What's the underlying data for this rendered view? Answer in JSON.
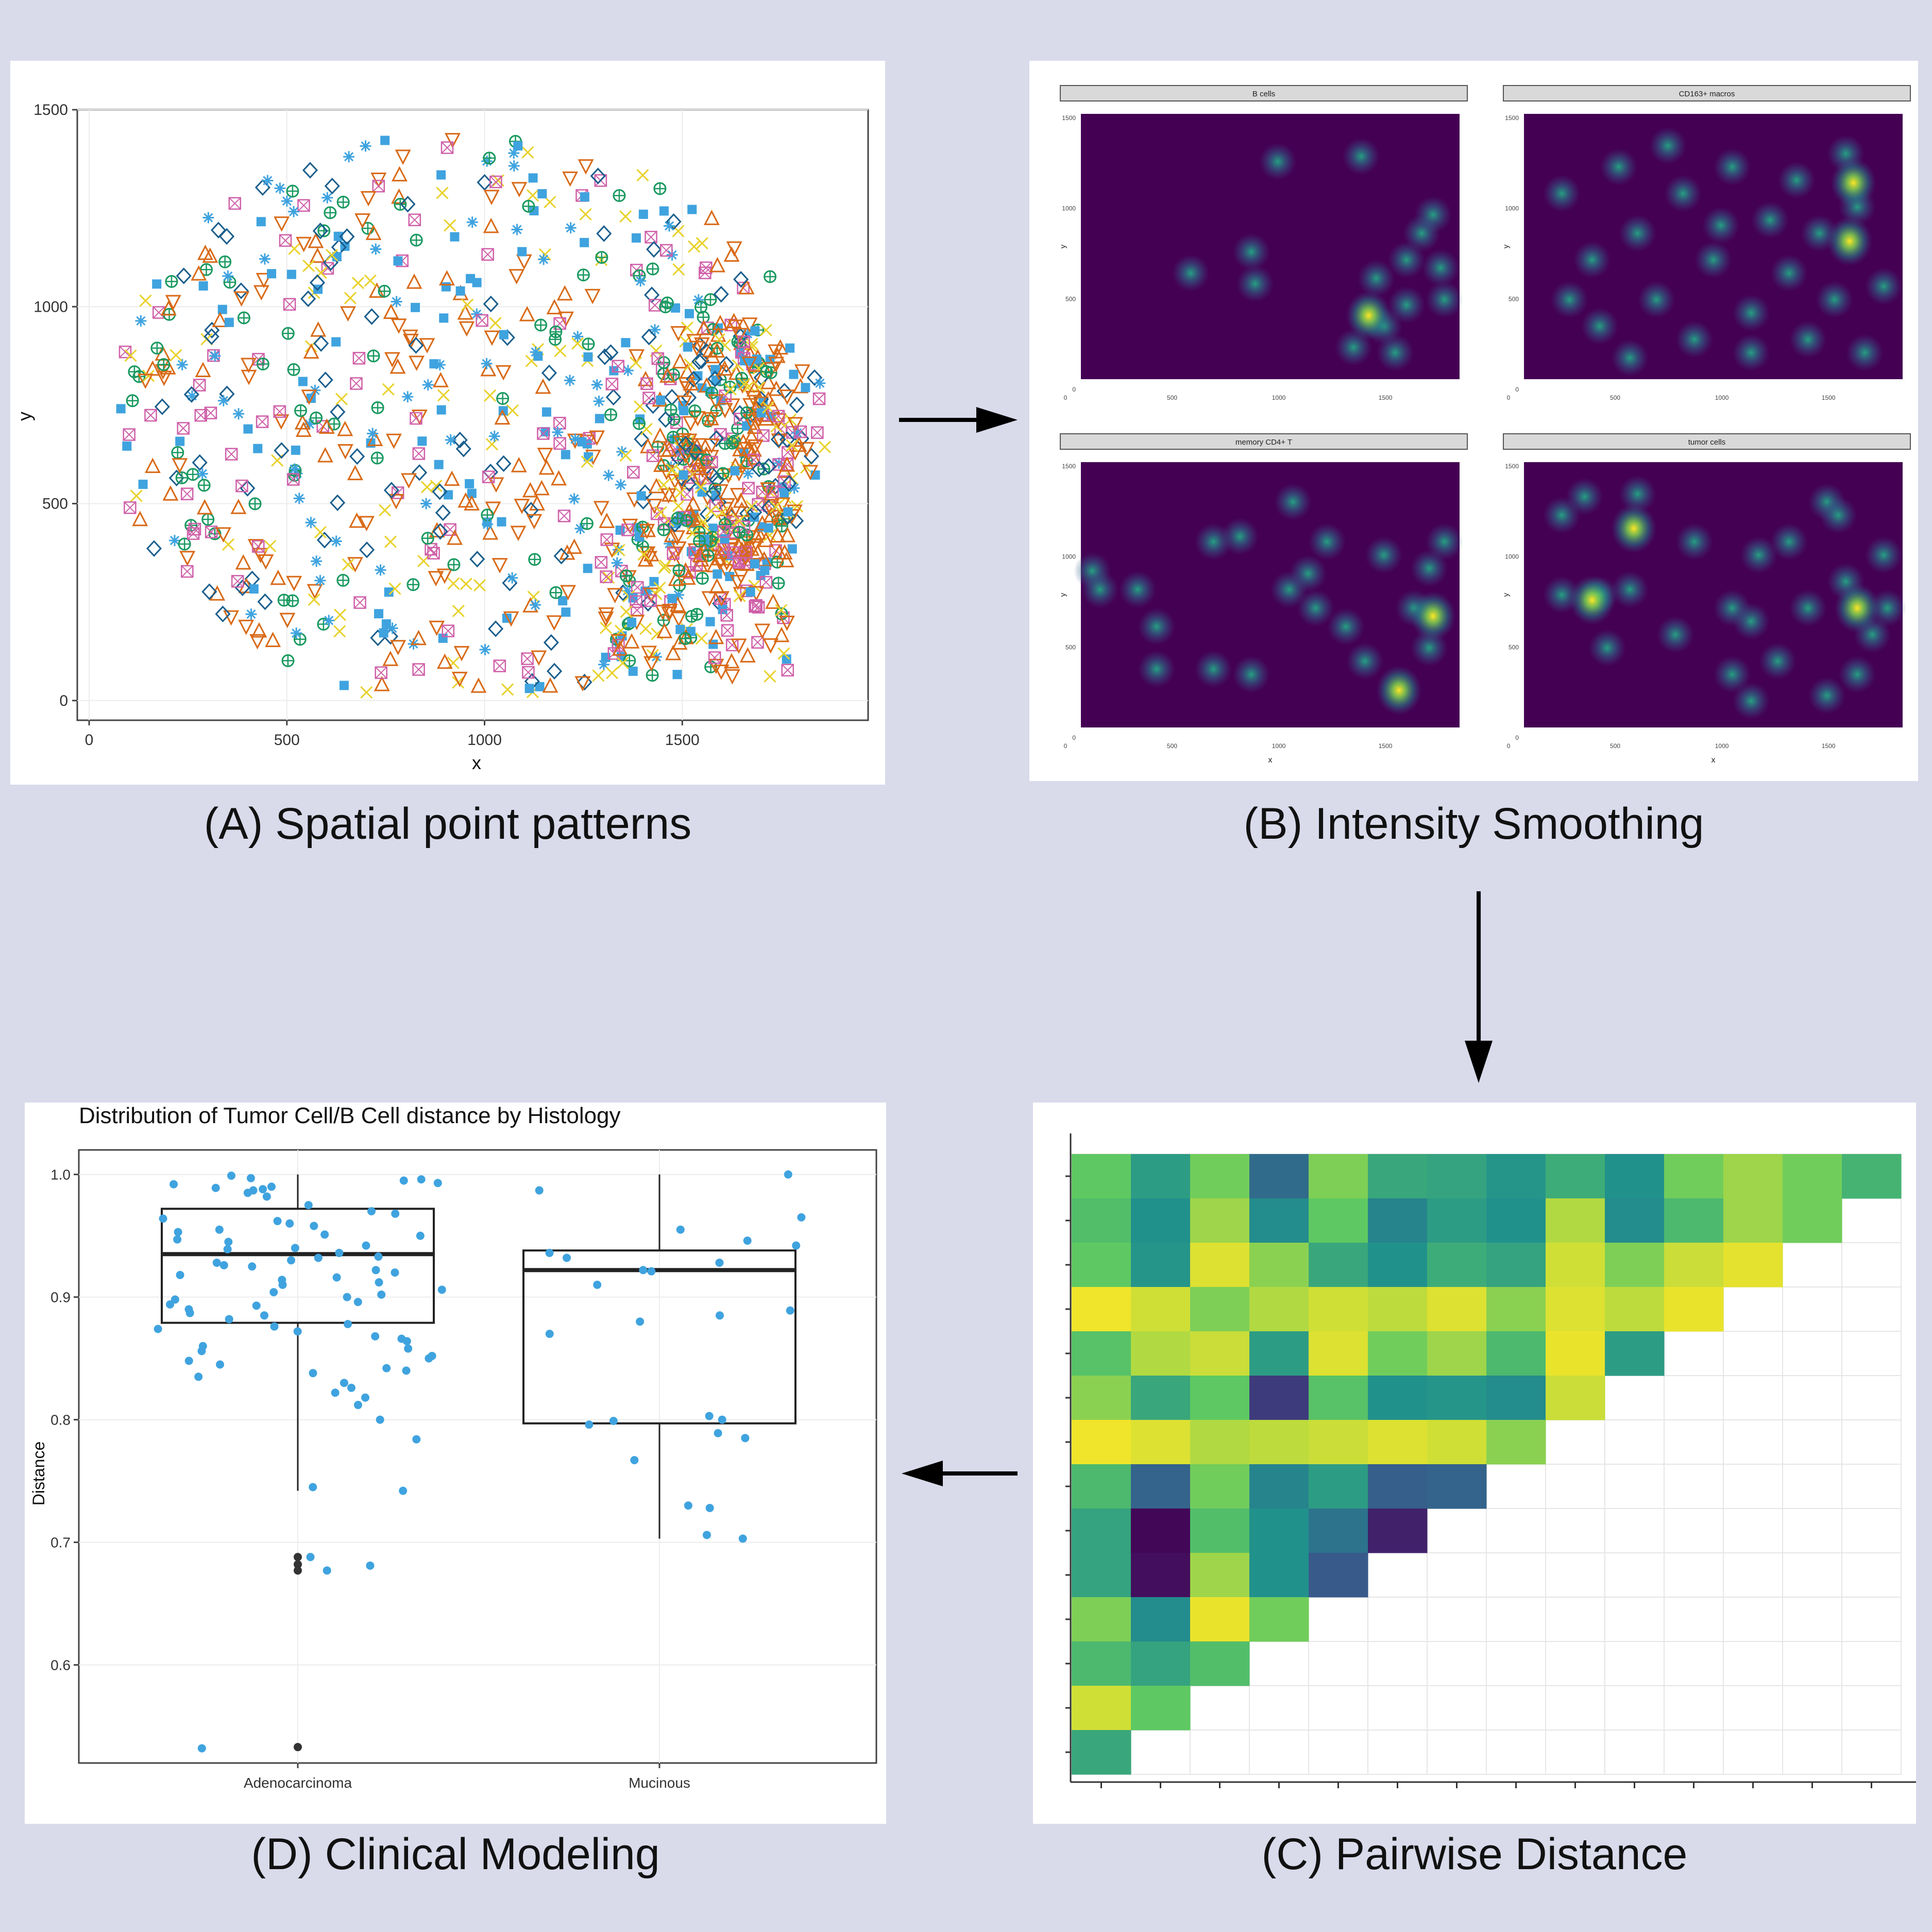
{
  "captions": {
    "a": "(A) Spatial point patterns",
    "b": "(B) Intensity Smoothing",
    "c": "(C) Pairwise Distance",
    "d": "(D) Clinical Modeling"
  },
  "panel_a": {
    "xlabel": "x",
    "ylabel": "y",
    "xticks": [
      "0",
      "500",
      "1000",
      "1500"
    ],
    "yticks": [
      "0",
      "500",
      "1000",
      "1500"
    ]
  },
  "panel_b": {
    "facets": [
      {
        "title": "B cells",
        "xlabel": "",
        "ylabel": "y"
      },
      {
        "title": "CD163+ macros",
        "xlabel": "",
        "ylabel": "y"
      },
      {
        "title": "memory CD4+ T",
        "xlabel": "x",
        "ylabel": "y"
      },
      {
        "title": "tumor cells",
        "xlabel": "x",
        "ylabel": "y"
      }
    ],
    "xticks": [
      "0",
      "500",
      "1000",
      "1500"
    ],
    "yticks": [
      "0",
      "500",
      "1000",
      "1500"
    ]
  },
  "colors": {
    "background": "#d9dbeb",
    "viridis_dark": "#440154",
    "viridis_bright": "#fde725",
    "point_blue": "#3fa3df",
    "point_green": "#1a9960",
    "point_yellow": "#e8d22c",
    "point_orange": "#d96a17",
    "point_pink": "#cf5fa8"
  },
  "chart_data": {
    "type": "box",
    "title": "Distribution of Tumor Cell/B Cell distance by Histology",
    "xlabel": "",
    "ylabel": "Distance",
    "categories": [
      "Adenocarcinoma",
      "Mucinous"
    ],
    "yticks": [
      "0.6",
      "0.7",
      "0.8",
      "0.9",
      "1.0"
    ],
    "ylim": [
      0.52,
      1.02
    ],
    "boxes": [
      {
        "name": "Adenocarcinoma",
        "q1": 0.879,
        "median": 0.935,
        "q3": 0.972,
        "whisker_low": 0.742,
        "whisker_high": 1.0,
        "outliers": [
          0.688,
          0.682,
          0.677,
          0.533
        ]
      },
      {
        "name": "Mucinous",
        "q1": 0.797,
        "median": 0.922,
        "q3": 0.938,
        "whisker_low": 0.703,
        "whisker_high": 1.0,
        "outliers": []
      }
    ],
    "points": {
      "Adenocarcinoma": [
        0.975,
        0.97,
        0.968,
        0.962,
        0.955,
        0.951,
        0.945,
        0.94,
        0.933,
        0.928,
        0.925,
        0.92,
        0.916,
        0.91,
        0.904,
        0.9,
        0.896,
        0.89,
        0.885,
        0.878,
        0.872,
        0.866,
        0.86,
        0.852,
        0.845,
        0.838,
        0.83,
        0.822,
        0.812,
        0.8,
        0.784,
        0.745,
        0.742,
        0.688,
        0.681,
        0.677,
        0.532,
        0.995,
        0.992,
        0.99,
        0.988,
        0.985,
        0.982,
        0.999,
        0.997,
        0.96,
        0.958,
        0.95,
        0.942,
        0.936,
        0.932,
        0.926,
        0.918,
        0.912,
        0.906,
        0.898,
        0.893,
        0.887,
        0.876,
        0.868,
        0.858,
        0.85,
        0.842,
        0.835,
        0.826,
        0.818,
        0.996,
        0.993,
        0.989,
        0.987,
        0.964,
        0.953,
        0.947,
        0.939,
        0.93,
        0.922,
        0.914,
        0.902,
        0.894,
        0.882,
        0.874,
        0.864,
        0.856,
        0.848,
        0.84
      ],
      "Mucinous": [
        1.0,
        0.987,
        0.965,
        0.955,
        0.946,
        0.942,
        0.936,
        0.932,
        0.928,
        0.922,
        0.921,
        0.91,
        0.889,
        0.885,
        0.88,
        0.87,
        0.803,
        0.8,
        0.799,
        0.796,
        0.789,
        0.785,
        0.767,
        0.73,
        0.728,
        0.706,
        0.703
      ]
    },
    "heatmap": {
      "type": "heatmap",
      "rows": 14,
      "description_free_values": [
        [
          0.75,
          0.55,
          0.78,
          0.35,
          0.8,
          0.6,
          0.58,
          0.52,
          0.62,
          0.5,
          0.78,
          0.85,
          0.78,
          0.65
        ],
        [
          0.7,
          0.5,
          0.85,
          0.48,
          0.75,
          0.45,
          0.55,
          0.5,
          0.88,
          0.48,
          0.68,
          0.85,
          0.78
        ],
        [
          0.75,
          0.52,
          0.95,
          0.82,
          0.6,
          0.5,
          0.62,
          0.58,
          0.93,
          0.8,
          0.92,
          0.96
        ],
        [
          0.98,
          0.93,
          0.8,
          0.88,
          0.93,
          0.9,
          0.95,
          0.82,
          0.95,
          0.9,
          0.97
        ],
        [
          0.72,
          0.88,
          0.92,
          0.55,
          0.95,
          0.78,
          0.85,
          0.68,
          0.97,
          0.55
        ],
        [
          0.82,
          0.6,
          0.75,
          0.18,
          0.72,
          0.5,
          0.52,
          0.48,
          0.92
        ],
        [
          0.98,
          0.95,
          0.88,
          0.9,
          0.92,
          0.95,
          0.93,
          0.82
        ],
        [
          0.68,
          0.32,
          0.78,
          0.45,
          0.55,
          0.3,
          0.32
        ],
        [
          0.58,
          0.02,
          0.7,
          0.5,
          0.38,
          0.1
        ],
        [
          0.58,
          0.04,
          0.85,
          0.5,
          0.28
        ],
        [
          0.8,
          0.48,
          0.97,
          0.78
        ],
        [
          0.68,
          0.58,
          0.7
        ],
        [
          0.93,
          0.75
        ],
        [
          0.6
        ]
      ]
    }
  }
}
